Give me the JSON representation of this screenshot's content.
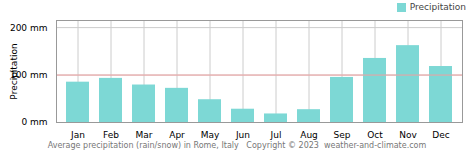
{
  "chart_data": {
    "type": "bar",
    "categories": [
      "Jan",
      "Feb",
      "Mar",
      "Apr",
      "May",
      "Jun",
      "Jul",
      "Aug",
      "Sep",
      "Oct",
      "Nov",
      "Dec"
    ],
    "series": [
      {
        "name": "Precipitation",
        "color": "#7dd8d5",
        "values": [
          85,
          93,
          79,
          72,
          48,
          28,
          18,
          27,
          95,
          135,
          162,
          118
        ]
      }
    ],
    "ylabel": "Precipitation",
    "ylim": [
      0,
      215
    ],
    "yticks": [
      {
        "value": 0,
        "label": "0 mm"
      },
      {
        "value": 100,
        "label": "100 mm"
      },
      {
        "value": 200,
        "label": "200 mm"
      }
    ],
    "reference_lines": [
      {
        "y": 100,
        "color": "#f0a0a0"
      }
    ],
    "caption": "Average precipitation (rain/snow) in Rome, Italy   Copyright © 2023  weather-and-climate.com",
    "grid": true,
    "legend": "upper right"
  }
}
